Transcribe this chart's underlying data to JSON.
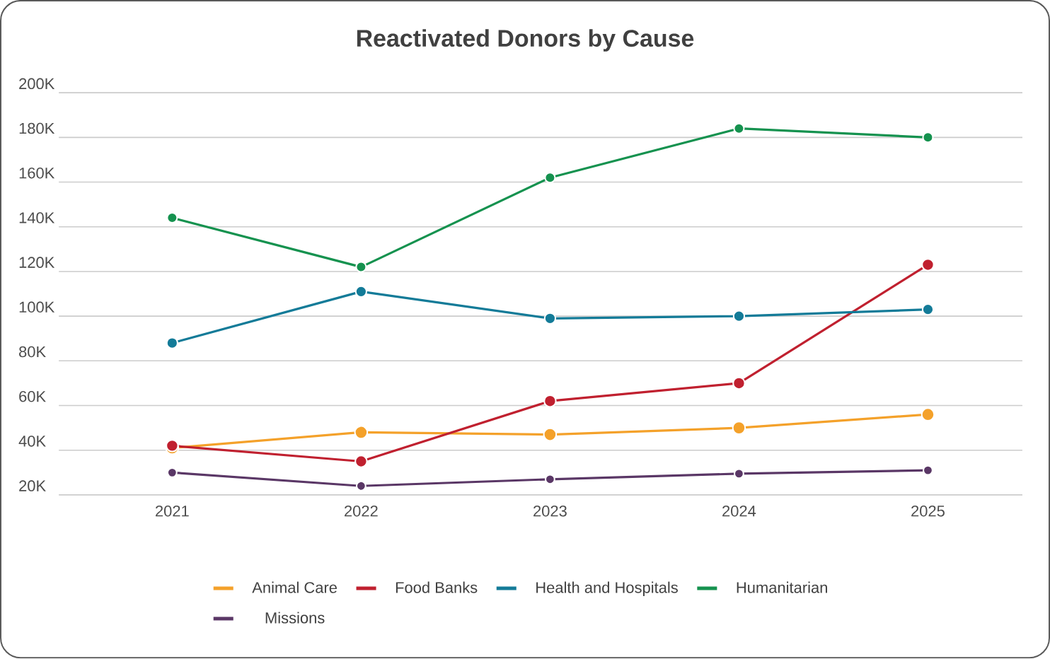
{
  "chart_data": {
    "type": "line",
    "title": "Reactivated Donors by Cause",
    "x": [
      2021,
      2022,
      2023,
      2024,
      2025
    ],
    "xlim": [
      2020.4,
      2025.5
    ],
    "xticks": [
      2021,
      2022,
      2023,
      2024,
      2025
    ],
    "ylim": [
      20000,
      200000
    ],
    "yticks": [
      {
        "value": 20000,
        "label": "20K"
      },
      {
        "value": 40000,
        "label": "40K"
      },
      {
        "value": 60000,
        "label": "60K"
      },
      {
        "value": 80000,
        "label": "80K"
      },
      {
        "value": 100000,
        "label": "100K"
      },
      {
        "value": 120000,
        "label": "120K"
      },
      {
        "value": 140000,
        "label": "140K"
      },
      {
        "value": 160000,
        "label": "160K"
      },
      {
        "value": 180000,
        "label": "180K"
      },
      {
        "value": 200000,
        "label": "200K"
      }
    ],
    "grid": "y",
    "legend": "bottom",
    "marker": "circle",
    "line_style": "solid",
    "series": [
      {
        "name": "Animal Care",
        "color": "#f4a12a",
        "values": [
          41000,
          48000,
          47000,
          50000,
          56000
        ]
      },
      {
        "name": "Food Banks",
        "color": "#c0202f",
        "values": [
          42000,
          35000,
          62000,
          70000,
          123000
        ]
      },
      {
        "name": "Health and Hospitals",
        "color": "#137b98",
        "values": [
          88000,
          111000,
          99000,
          100000,
          103000
        ]
      },
      {
        "name": "Humanitarian",
        "color": "#15924f",
        "values": [
          144000,
          122000,
          162000,
          184000,
          180000
        ]
      },
      {
        "name": "Missions",
        "color": "#5a3766",
        "values": [
          30000,
          24000,
          27000,
          29500,
          31000
        ]
      }
    ]
  }
}
